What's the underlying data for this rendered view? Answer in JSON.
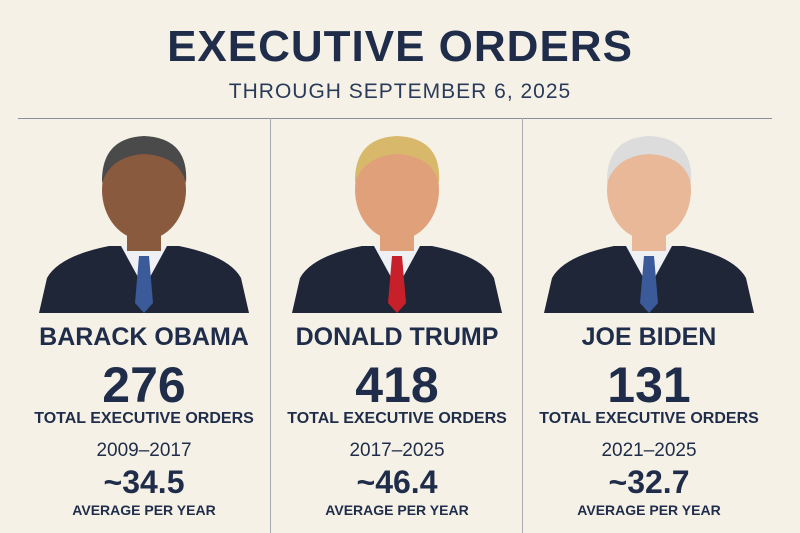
{
  "header": {
    "title": "EXECUTIVE ORDERS",
    "subtitle": "THROUGH SEPTEMBER 6, 2025"
  },
  "columns": [
    {
      "name": "BARACK OBAMA",
      "total": "276",
      "total_label": "TOTAL EXECUTIVE ORDERS",
      "years": "2009–2017",
      "average": "~34.5",
      "average_label": "AVERAGE PER YEAR"
    },
    {
      "name": "DONALD TRUMP",
      "total": "418",
      "total_label": "TOTAL EXECUTIVE ORDERS",
      "years": "2017–2025",
      "average": "~46.4",
      "average_label": "AVERAGE PER YEAR"
    },
    {
      "name": "JOE BIDEN",
      "total": "131",
      "total_label": "TOTAL EXECUTIVE ORDERS",
      "years": "2021–2025",
      "average": "~32.7",
      "average_label": "AVERAGE PER YEAR"
    }
  ]
}
